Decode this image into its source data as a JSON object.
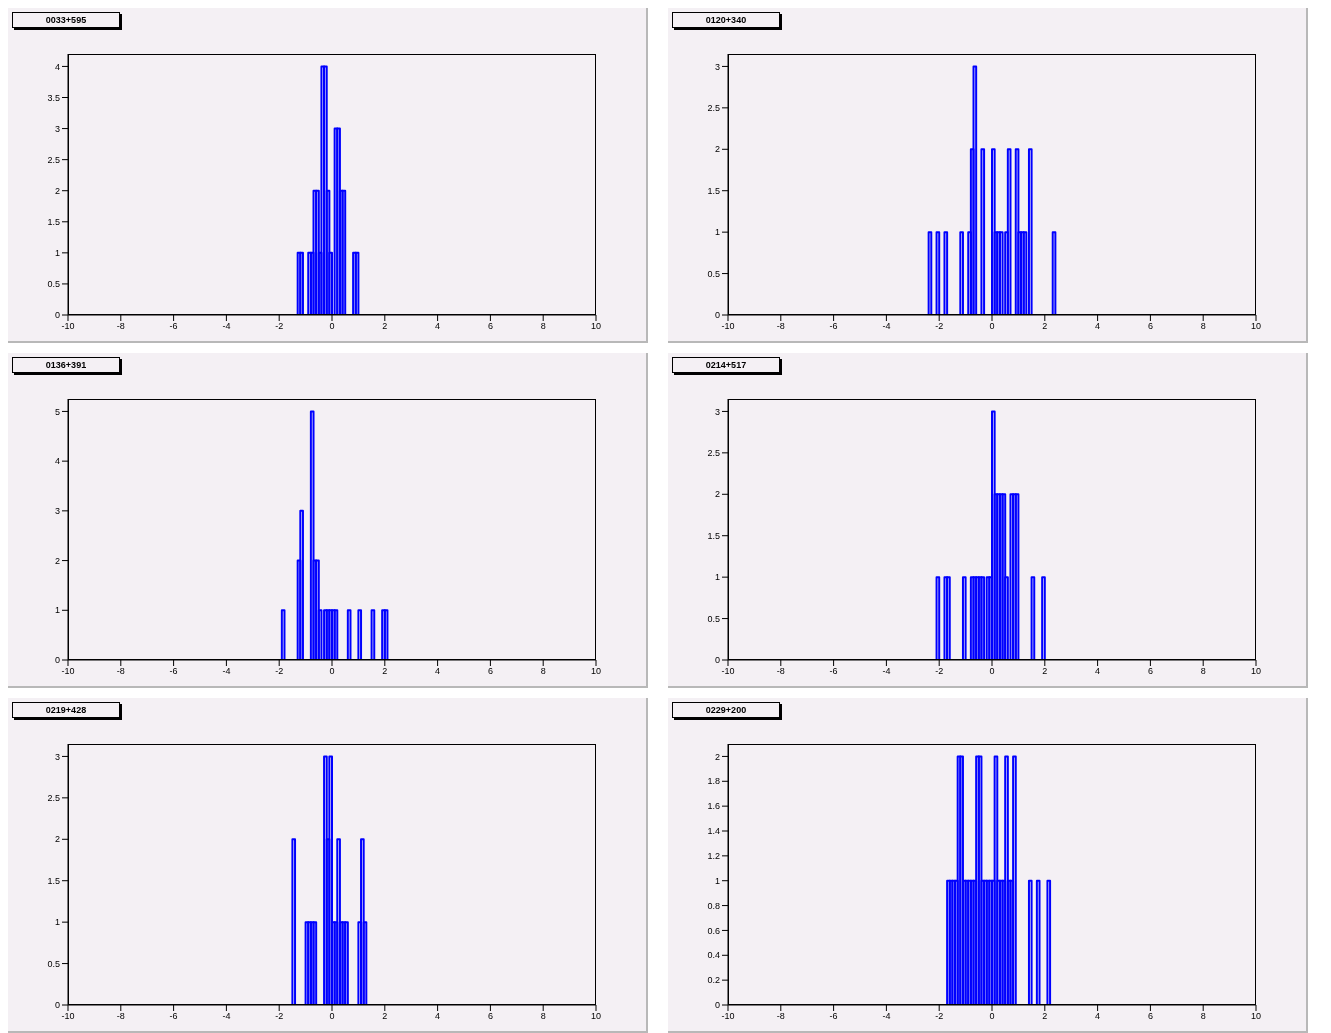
{
  "chart_data": [
    {
      "type": "histogram",
      "title": "0033+595",
      "color": "#0000ff",
      "xlim": [
        -10,
        10
      ],
      "xticks": [
        -10,
        -8,
        -6,
        -4,
        -2,
        0,
        2,
        4,
        6,
        8,
        10
      ],
      "ylim": [
        0,
        4.2
      ],
      "yticks": [
        0,
        0.5,
        1,
        1.5,
        2,
        2.5,
        3,
        3.5,
        4
      ],
      "bins": [
        -10,
        -1.3,
        -1.2,
        -1.1,
        -0.9,
        -0.8,
        -0.7,
        -0.6,
        -0.5,
        -0.4,
        -0.3,
        -0.2,
        -0.1,
        0,
        0.1,
        0.2,
        0.3,
        0.4,
        0.5,
        0.8,
        0.9,
        1,
        10
      ],
      "values": [
        0,
        1,
        1,
        0,
        1,
        1,
        2,
        2,
        1,
        4,
        4,
        2,
        1,
        0,
        3,
        3,
        2,
        2,
        0,
        1,
        1,
        0
      ]
    },
    {
      "type": "histogram",
      "title": "0120+340",
      "color": "#0000ff",
      "xlim": [
        -10,
        10
      ],
      "xticks": [
        -10,
        -8,
        -6,
        -4,
        -2,
        0,
        2,
        4,
        6,
        8,
        10
      ],
      "ylim": [
        0,
        3.15
      ],
      "yticks": [
        0,
        0.5,
        1,
        1.5,
        2,
        2.5,
        3
      ],
      "bins": [
        -10,
        -2.4,
        -2.3,
        -2.1,
        -2,
        -1.8,
        -1.7,
        -1.2,
        -1.1,
        -0.9,
        -0.8,
        -0.7,
        -0.6,
        -0.4,
        -0.3,
        0,
        0.1,
        0.2,
        0.3,
        0.4,
        0.5,
        0.6,
        0.7,
        0.9,
        1,
        1.1,
        1.2,
        1.3,
        1.4,
        1.5,
        2.3,
        2.4,
        10
      ],
      "values": [
        0,
        1,
        0,
        1,
        0,
        1,
        0,
        1,
        0,
        1,
        2,
        3,
        0,
        2,
        0,
        2,
        1,
        1,
        1,
        0,
        1,
        2,
        0,
        2,
        1,
        1,
        1,
        0,
        2,
        0,
        1,
        0
      ]
    },
    {
      "type": "histogram",
      "title": "0136+391",
      "color": "#0000ff",
      "xlim": [
        -10,
        10
      ],
      "xticks": [
        -10,
        -8,
        -6,
        -4,
        -2,
        0,
        2,
        4,
        6,
        8,
        10
      ],
      "ylim": [
        0,
        5.25
      ],
      "yticks": [
        0,
        1,
        2,
        3,
        4,
        5
      ],
      "bins": [
        -10,
        -1.9,
        -1.8,
        -1.3,
        -1.2,
        -1.1,
        -0.8,
        -0.7,
        -0.6,
        -0.5,
        -0.4,
        -0.3,
        -0.2,
        -0.1,
        0,
        0.1,
        0.2,
        0.6,
        0.7,
        1,
        1.1,
        1.5,
        1.6,
        1.9,
        2,
        2.1,
        10
      ],
      "values": [
        0,
        1,
        0,
        2,
        3,
        0,
        5,
        2,
        2,
        1,
        0,
        1,
        1,
        1,
        1,
        1,
        0,
        1,
        0,
        1,
        0,
        1,
        0,
        1,
        1,
        0
      ]
    },
    {
      "type": "histogram",
      "title": "0214+517",
      "color": "#0000ff",
      "xlim": [
        -10,
        10
      ],
      "xticks": [
        -10,
        -8,
        -6,
        -4,
        -2,
        0,
        2,
        4,
        6,
        8,
        10
      ],
      "ylim": [
        0,
        3.15
      ],
      "yticks": [
        0,
        0.5,
        1,
        1.5,
        2,
        2.5,
        3
      ],
      "bins": [
        -10,
        -2.1,
        -2,
        -1.8,
        -1.7,
        -1.6,
        -1.1,
        -1,
        -0.8,
        -0.7,
        -0.6,
        -0.5,
        -0.4,
        -0.3,
        -0.2,
        -0.1,
        0,
        0.1,
        0.2,
        0.3,
        0.4,
        0.5,
        0.6,
        0.7,
        0.8,
        0.9,
        1,
        1.5,
        1.6,
        1.9,
        2,
        10
      ],
      "values": [
        0,
        1,
        0,
        1,
        1,
        0,
        1,
        0,
        1,
        1,
        1,
        1,
        1,
        0,
        1,
        1,
        3,
        2,
        2,
        2,
        2,
        1,
        0,
        2,
        2,
        2,
        0,
        1,
        0,
        1,
        0
      ]
    },
    {
      "type": "histogram",
      "title": "0219+428",
      "color": "#0000ff",
      "xlim": [
        -10,
        10
      ],
      "xticks": [
        -10,
        -8,
        -6,
        -4,
        -2,
        0,
        2,
        4,
        6,
        8,
        10
      ],
      "ylim": [
        0,
        3.15
      ],
      "yticks": [
        0,
        0.5,
        1,
        1.5,
        2,
        2.5,
        3
      ],
      "bins": [
        -10,
        -1.5,
        -1.4,
        -1,
        -0.9,
        -0.8,
        -0.7,
        -0.6,
        -0.3,
        -0.2,
        -0.1,
        0,
        0.1,
        0.2,
        0.3,
        0.4,
        0.5,
        0.6,
        1,
        1.1,
        1.2,
        1.3,
        10
      ],
      "values": [
        0,
        2,
        0,
        1,
        1,
        1,
        1,
        0,
        3,
        2,
        3,
        1,
        1,
        2,
        1,
        1,
        1,
        0,
        1,
        2,
        1,
        0
      ]
    },
    {
      "type": "histogram",
      "title": "0229+200",
      "color": "#0000ff",
      "xlim": [
        -10,
        10
      ],
      "xticks": [
        -10,
        -8,
        -6,
        -4,
        -2,
        0,
        2,
        4,
        6,
        8,
        10
      ],
      "ylim": [
        0,
        2.1
      ],
      "yticks": [
        0,
        0.2,
        0.4,
        0.6,
        0.8,
        1,
        1.2,
        1.4,
        1.6,
        1.8,
        2
      ],
      "bins": [
        -10,
        -1.7,
        -1.6,
        -1.5,
        -1.4,
        -1.3,
        -1.2,
        -1.1,
        -1,
        -0.9,
        -0.8,
        -0.7,
        -0.6,
        -0.5,
        -0.4,
        -0.3,
        -0.2,
        -0.1,
        0,
        0.1,
        0.2,
        0.3,
        0.4,
        0.5,
        0.6,
        0.7,
        0.8,
        0.9,
        1.4,
        1.5,
        1.7,
        1.8,
        2.1,
        2.2,
        10
      ],
      "values": [
        0,
        1,
        1,
        1,
        1,
        2,
        2,
        1,
        1,
        1,
        1,
        1,
        2,
        2,
        1,
        1,
        1,
        1,
        1,
        2,
        1,
        1,
        1,
        2,
        1,
        1,
        2,
        0,
        1,
        0,
        1,
        0,
        1,
        0
      ]
    }
  ]
}
